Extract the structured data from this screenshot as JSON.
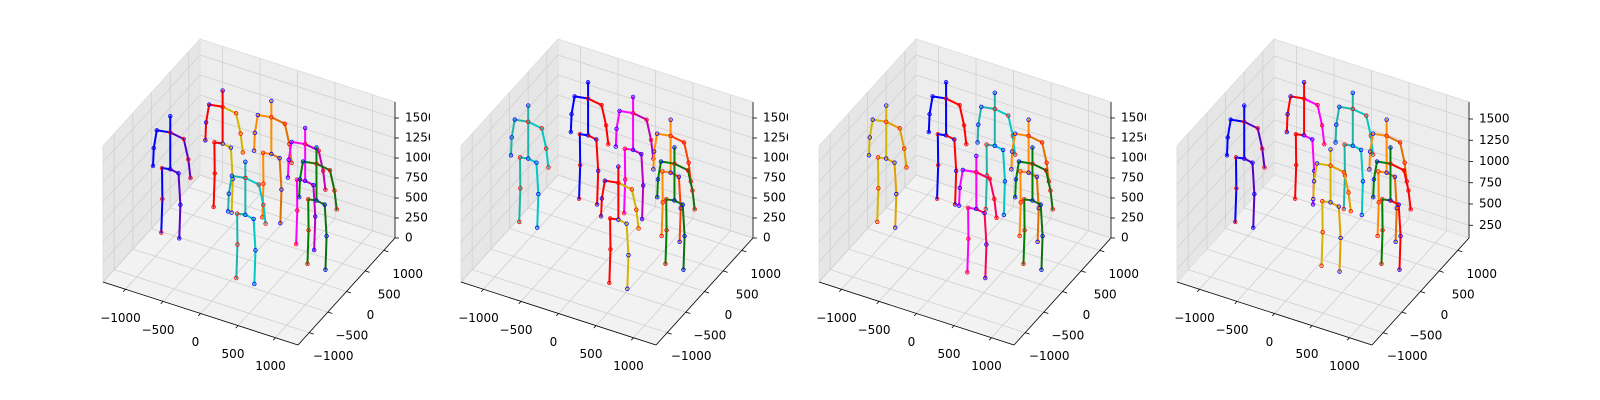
{
  "chart_data": [
    {
      "type": "skeleton3d",
      "xlim": [
        -1300,
        1300
      ],
      "ylim": [
        -1300,
        1300
      ],
      "zlim": [
        0,
        1700
      ],
      "xticks": [
        {
          "value": -1000,
          "label": "−1000"
        },
        {
          "value": -500,
          "label": "−500"
        },
        0,
        500,
        1000
      ],
      "yticks": [
        {
          "value": -1000,
          "label": "−1000"
        },
        {
          "value": -500,
          "label": "−500"
        },
        0,
        500,
        1000
      ],
      "zticks": [
        0,
        250,
        500,
        750,
        1000,
        1250,
        1500
      ],
      "skeletons": [
        {
          "x": -1000,
          "y": -100,
          "colors": [
            "#0000ff",
            "#5a00c8"
          ]
        },
        {
          "x": -700,
          "y": 700,
          "colors": [
            "#ff0000",
            "#d4b400"
          ]
        },
        {
          "x": -100,
          "y": 800,
          "colors": [
            "#ff8c00",
            "#e07000"
          ]
        },
        {
          "x": 200,
          "y": -500,
          "colors": [
            "#20b2aa",
            "#00c8c8"
          ]
        },
        {
          "x": 500,
          "y": 500,
          "colors": [
            "#ff00ff",
            "#c000c0"
          ]
        },
        {
          "x": 800,
          "y": 200,
          "colors": [
            "#008000",
            "#107010"
          ]
        }
      ]
    },
    {
      "type": "skeleton3d",
      "xlim": [
        -1300,
        1300
      ],
      "ylim": [
        -1300,
        1300
      ],
      "zlim": [
        0,
        1700
      ],
      "xticks": [
        {
          "value": -1000,
          "label": "−1000"
        },
        {
          "value": -500,
          "label": "−500"
        },
        0,
        500,
        1000
      ],
      "yticks": [
        {
          "value": -1000,
          "label": "−1000"
        },
        {
          "value": -500,
          "label": "−500"
        },
        0,
        500,
        1000
      ],
      "zticks": [
        0,
        250,
        500,
        750,
        1000,
        1250,
        1500
      ],
      "skeletons": [
        {
          "x": -1100,
          "y": 100,
          "colors": [
            "#20b2aa",
            "#00c8c8"
          ]
        },
        {
          "x": -700,
          "y": 900,
          "colors": [
            "#0000ff",
            "#ff0000"
          ]
        },
        {
          "x": -100,
          "y": 900,
          "colors": [
            "#ff00ff",
            "#c000c0"
          ]
        },
        {
          "x": 400,
          "y": -500,
          "colors": [
            "#ff0000",
            "#d4b400"
          ]
        },
        {
          "x": 500,
          "y": 700,
          "colors": [
            "#ff8c00",
            "#ff4000"
          ]
        },
        {
          "x": 800,
          "y": 200,
          "colors": [
            "#008000",
            "#107010"
          ]
        }
      ]
    },
    {
      "type": "skeleton3d",
      "xlim": [
        -1300,
        1300
      ],
      "ylim": [
        -1300,
        1300
      ],
      "zlim": [
        0,
        1700
      ],
      "xticks": [
        {
          "value": -1000,
          "label": "−1000"
        },
        {
          "value": -500,
          "label": "−500"
        },
        0,
        500,
        1000
      ],
      "yticks": [
        {
          "value": -1000,
          "label": "−1000"
        },
        {
          "value": -500,
          "label": "−500"
        },
        0,
        500,
        1000
      ],
      "zticks": [
        0,
        250,
        500,
        750,
        1000,
        1250,
        1500
      ],
      "skeletons": [
        {
          "x": -1100,
          "y": 100,
          "colors": [
            "#d4b400",
            "#e0a000"
          ]
        },
        {
          "x": -700,
          "y": 900,
          "colors": [
            "#0000ff",
            "#ff0000"
          ]
        },
        {
          "x": -100,
          "y": 1000,
          "colors": [
            "#20b2aa",
            "#00c8c8"
          ]
        },
        {
          "x": 300,
          "y": -300,
          "colors": [
            "#ff00ff",
            "#ff0060"
          ]
        },
        {
          "x": 500,
          "y": 700,
          "colors": [
            "#ff8c00",
            "#e07000"
          ]
        },
        {
          "x": 800,
          "y": 200,
          "colors": [
            "#008000",
            "#107010"
          ]
        }
      ]
    },
    {
      "type": "skeleton3d",
      "xlim": [
        -1300,
        1300
      ],
      "ylim": [
        -1300,
        1300
      ],
      "zlim": [
        100,
        1700
      ],
      "xticks": [
        {
          "value": -1000,
          "label": "−1000"
        },
        {
          "value": -500,
          "label": "−500"
        },
        0,
        500,
        1000
      ],
      "yticks": [
        {
          "value": -1000,
          "label": "−1000"
        },
        {
          "value": -500,
          "label": "−500"
        },
        0,
        500,
        1000
      ],
      "zticks": [
        250,
        500,
        750,
        1000,
        1250,
        1500
      ],
      "skeletons": [
        {
          "x": -1100,
          "y": 100,
          "colors": [
            "#0000ff",
            "#5a00c8"
          ]
        },
        {
          "x": -700,
          "y": 900,
          "colors": [
            "#ff0000",
            "#ff00ff"
          ]
        },
        {
          "x": -100,
          "y": 1000,
          "colors": [
            "#20b2aa",
            "#00c8c8"
          ]
        },
        {
          "x": 200,
          "y": -200,
          "colors": [
            "#d4b400",
            "#e0a000"
          ]
        },
        {
          "x": 500,
          "y": 700,
          "colors": [
            "#ff8c00",
            "#e07000"
          ]
        },
        {
          "x": 800,
          "y": 200,
          "colors": [
            "#008000",
            "#ff0000"
          ]
        }
      ]
    }
  ]
}
